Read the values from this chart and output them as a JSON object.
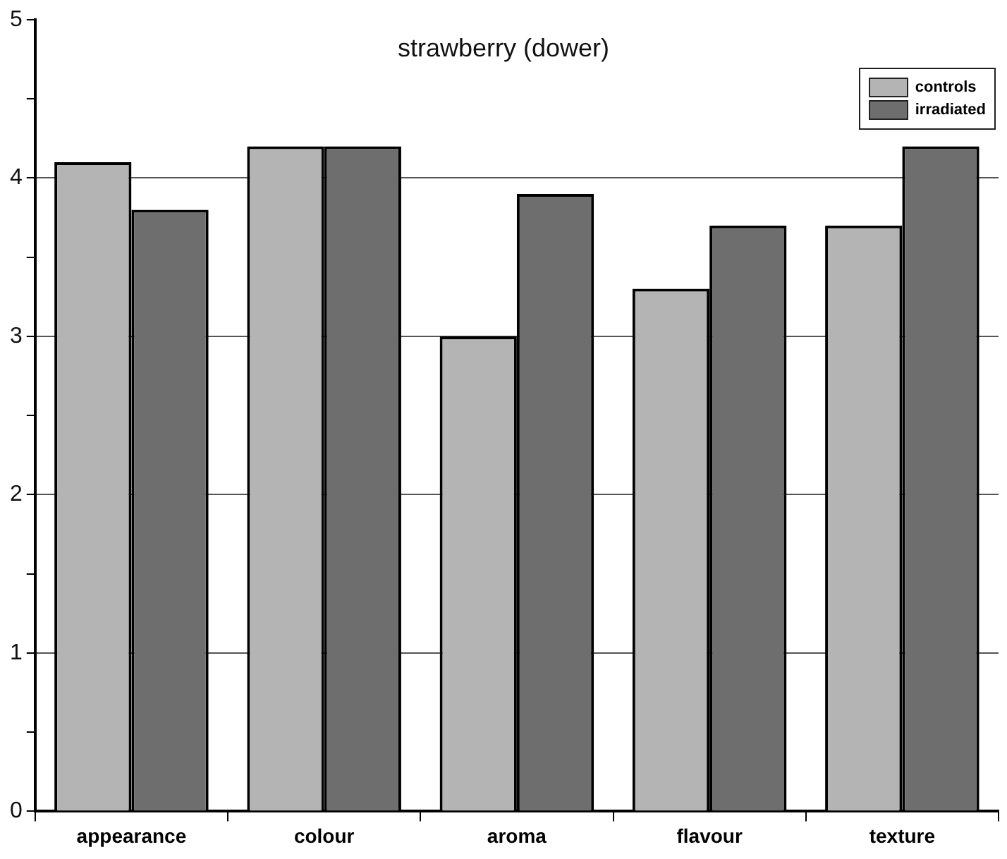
{
  "chart_data": {
    "type": "bar",
    "title": "strawberry (dower)",
    "categories": [
      "appearance",
      "colour",
      "aroma",
      "flavour",
      "texture"
    ],
    "series": [
      {
        "name": "controls",
        "color": "#b4b4b4",
        "values": [
          4.1,
          4.2,
          3.0,
          3.3,
          3.7
        ]
      },
      {
        "name": "irradiated",
        "color": "#6e6e6e",
        "values": [
          3.8,
          4.2,
          3.9,
          3.7,
          4.2
        ]
      }
    ],
    "ylim": [
      0,
      5
    ],
    "yticks": [
      0,
      {
        "value": 0.5,
        "label": null
      },
      1,
      {
        "value": 1.5,
        "label": null
      },
      2,
      {
        "value": 2.5,
        "label": null
      },
      3,
      {
        "value": 3.5,
        "label": null
      },
      4,
      {
        "value": 4.5,
        "label": null
      },
      5
    ],
    "grid": "y",
    "legend": "top right"
  }
}
